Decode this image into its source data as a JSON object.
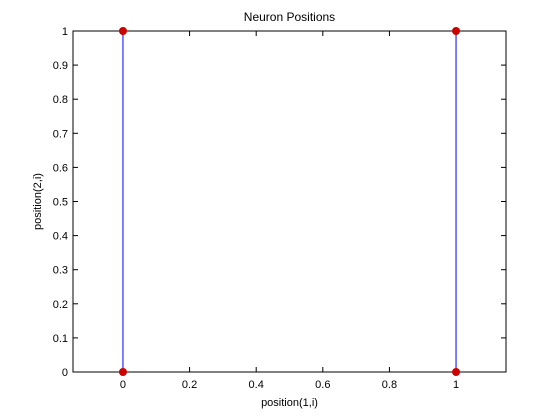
{
  "chart_data": {
    "type": "scatter",
    "title": "Neuron Positions",
    "xlabel": "position(1,i)",
    "ylabel": "position(2,i)",
    "xlim": [
      -0.15,
      1.15
    ],
    "ylim": [
      0,
      1
    ],
    "xticks": [
      0,
      0.2,
      0.4,
      0.6,
      0.8,
      1
    ],
    "xtick_labels": [
      "0",
      "0.2",
      "0.4",
      "0.6",
      "0.8",
      "1"
    ],
    "yticks": [
      0,
      0.1,
      0.2,
      0.3,
      0.4,
      0.5,
      0.6,
      0.7,
      0.8,
      0.9,
      1
    ],
    "ytick_labels": [
      "0",
      "0.1",
      "0.2",
      "0.3",
      "0.4",
      "0.5",
      "0.6",
      "0.7",
      "0.8",
      "0.9",
      "1"
    ],
    "grid": false,
    "points": [
      {
        "x": 0,
        "y": 0
      },
      {
        "x": 0,
        "y": 1
      },
      {
        "x": 1,
        "y": 0
      },
      {
        "x": 1,
        "y": 1
      }
    ],
    "connections": [
      {
        "from": [
          0,
          0
        ],
        "to": [
          0,
          1
        ]
      },
      {
        "from": [
          1,
          0
        ],
        "to": [
          1,
          1
        ]
      }
    ],
    "colors": {
      "point": "#cc0000",
      "connection": "#0000ff",
      "axes": "#000000"
    }
  }
}
